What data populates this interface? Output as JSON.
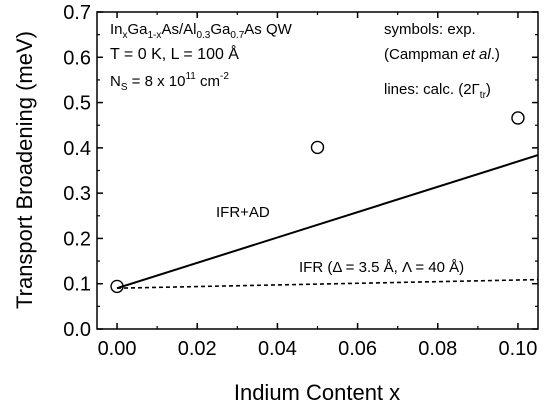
{
  "chart_data": {
    "type": "scatter",
    "xlabel": "Indium Content x",
    "ylabel": "Transport Broadening (meV)",
    "xlim": [
      -0.005,
      0.105
    ],
    "ylim": [
      0.0,
      0.7
    ],
    "xticks": [
      "0.00",
      "0.02",
      "0.04",
      "0.06",
      "0.08",
      "0.10"
    ],
    "yticks": [
      "0.0",
      "0.1",
      "0.2",
      "0.3",
      "0.4",
      "0.5",
      "0.6",
      "0.7"
    ],
    "grid": false,
    "annotation_left": {
      "line1": {
        "a": "In",
        "b": "x",
        "c": "Ga",
        "d": "1-x",
        "e": "As/Al",
        "f": "0.3",
        "g": "Ga",
        "h": "0.7",
        "i": "As QW"
      },
      "line2": "T = 0 K, L = 100 Å",
      "line3": {
        "a": "N",
        "b": "S",
        "c": " = 8 x 10",
        "d": "11",
        "e": " cm",
        "f": "-2"
      }
    },
    "annotation_right": {
      "line1": "symbols: exp.",
      "line2": {
        "a": "(Campman ",
        "b": "et al",
        "c": ".)"
      },
      "line3": {
        "a": "lines: calc. (2Γ",
        "b": "tr",
        "c": ")"
      }
    },
    "series": [
      {
        "name": "IFR+AD",
        "style": "solid",
        "x": [
          0.0,
          0.105
        ],
        "y": [
          0.09,
          0.384
        ]
      },
      {
        "name": "IFR (Δ = 3.5 Å, Λ = 40 Å)",
        "style": "dashed",
        "x": [
          0.0,
          0.105
        ],
        "y": [
          0.09,
          0.109
        ]
      },
      {
        "name": "exp",
        "style": "open-circle",
        "x": [
          0.0,
          0.05,
          0.1
        ],
        "y": [
          0.094,
          0.401,
          0.466
        ]
      }
    ]
  }
}
